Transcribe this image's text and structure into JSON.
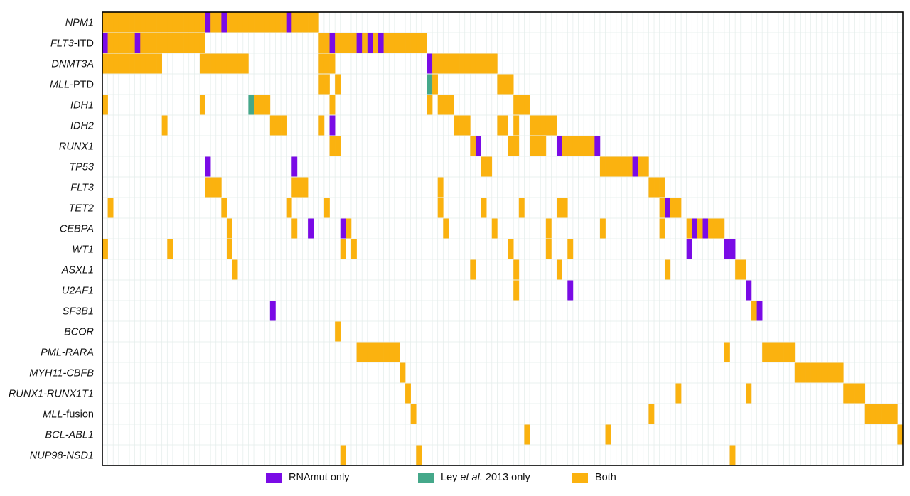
{
  "chart_data": {
    "type": "heatmap",
    "description_free": true,
    "rows": [
      {
        "label": [
          {
            "t": "NPM1",
            "i": true
          }
        ]
      },
      {
        "label": [
          {
            "t": "FLT3",
            "i": true
          },
          {
            "t": "-ITD",
            "i": false
          }
        ]
      },
      {
        "label": [
          {
            "t": "DNMT3A",
            "i": true
          }
        ]
      },
      {
        "label": [
          {
            "t": "MLL",
            "i": true
          },
          {
            "t": "-PTD",
            "i": false
          }
        ]
      },
      {
        "label": [
          {
            "t": "IDH1",
            "i": true
          }
        ]
      },
      {
        "label": [
          {
            "t": "IDH2",
            "i": true
          }
        ]
      },
      {
        "label": [
          {
            "t": "RUNX1",
            "i": true
          }
        ]
      },
      {
        "label": [
          {
            "t": "TP53",
            "i": true
          }
        ]
      },
      {
        "label": [
          {
            "t": "FLT3",
            "i": true
          }
        ]
      },
      {
        "label": [
          {
            "t": "TET2",
            "i": true
          }
        ]
      },
      {
        "label": [
          {
            "t": "CEBPA",
            "i": true
          }
        ]
      },
      {
        "label": [
          {
            "t": "WT1",
            "i": true
          }
        ]
      },
      {
        "label": [
          {
            "t": "ASXL1",
            "i": true
          }
        ]
      },
      {
        "label": [
          {
            "t": "U2AF1",
            "i": true
          }
        ]
      },
      {
        "label": [
          {
            "t": "SF3B1",
            "i": true
          }
        ]
      },
      {
        "label": [
          {
            "t": "BCOR",
            "i": true
          }
        ]
      },
      {
        "label": [
          {
            "t": "PML-RARA",
            "i": true
          }
        ]
      },
      {
        "label": [
          {
            "t": "MYH11-CBFB",
            "i": true
          }
        ]
      },
      {
        "label": [
          {
            "t": "RUNX1-RUNX1T1",
            "i": true
          }
        ]
      },
      {
        "label": [
          {
            "t": "MLL",
            "i": true
          },
          {
            "t": "-fusion",
            "i": false
          }
        ]
      },
      {
        "label": [
          {
            "t": "BCL-ABL1",
            "i": true
          }
        ]
      },
      {
        "label": [
          {
            "t": "NUP98-NSD1",
            "i": true
          }
        ]
      }
    ],
    "n_samples": 148,
    "categories": [
      {
        "code": "R",
        "name": "RNAmut only",
        "color": "#7a0be6"
      },
      {
        "code": "L",
        "name": "Ley et al. 2013 only",
        "color": "#45a88a"
      },
      {
        "code": "B",
        "name": "Both",
        "color": "#fbb20f"
      }
    ],
    "segments": [
      [
        [
          0,
          19,
          "B"
        ],
        [
          19,
          1,
          "R"
        ],
        [
          20,
          2,
          "B"
        ],
        [
          22,
          1,
          "R"
        ],
        [
          23,
          11,
          "B"
        ],
        [
          34,
          1,
          "R"
        ],
        [
          35,
          5,
          "B"
        ]
      ],
      [
        [
          0,
          1,
          "R"
        ],
        [
          1,
          5,
          "B"
        ],
        [
          6,
          1,
          "R"
        ],
        [
          7,
          12,
          "B"
        ],
        [
          40,
          2,
          "B"
        ],
        [
          42,
          1,
          "R"
        ],
        [
          43,
          4,
          "B"
        ],
        [
          47,
          1,
          "R"
        ],
        [
          48,
          1,
          "B"
        ],
        [
          49,
          1,
          "R"
        ],
        [
          50,
          1,
          "B"
        ],
        [
          51,
          1,
          "R"
        ],
        [
          52,
          8,
          "B"
        ]
      ],
      [
        [
          0,
          11,
          "B"
        ],
        [
          18,
          9,
          "B"
        ],
        [
          40,
          3,
          "B"
        ],
        [
          60,
          1,
          "R"
        ],
        [
          61,
          12,
          "B"
        ]
      ],
      [
        [
          40,
          2,
          "B"
        ],
        [
          43,
          1,
          "B"
        ],
        [
          60,
          1,
          "L"
        ],
        [
          61,
          1,
          "B"
        ],
        [
          73,
          3,
          "B"
        ]
      ],
      [
        [
          0,
          1,
          "B"
        ],
        [
          18,
          1,
          "B"
        ],
        [
          27,
          1,
          "L"
        ],
        [
          28,
          3,
          "B"
        ],
        [
          42,
          1,
          "B"
        ],
        [
          60,
          1,
          "B"
        ],
        [
          62,
          3,
          "B"
        ],
        [
          76,
          3,
          "B"
        ]
      ],
      [
        [
          11,
          1,
          "B"
        ],
        [
          31,
          3,
          "B"
        ],
        [
          40,
          1,
          "B"
        ],
        [
          42,
          1,
          "R"
        ],
        [
          65,
          3,
          "B"
        ],
        [
          73,
          2,
          "B"
        ],
        [
          76,
          1,
          "B"
        ],
        [
          79,
          5,
          "B"
        ]
      ],
      [
        [
          42,
          2,
          "B"
        ],
        [
          68,
          1,
          "B"
        ],
        [
          69,
          1,
          "R"
        ],
        [
          75,
          2,
          "B"
        ],
        [
          79,
          3,
          "B"
        ],
        [
          84,
          1,
          "R"
        ],
        [
          85,
          6,
          "B"
        ],
        [
          91,
          1,
          "R"
        ]
      ],
      [
        [
          19,
          1,
          "R"
        ],
        [
          35,
          1,
          "R"
        ],
        [
          70,
          2,
          "B"
        ],
        [
          92,
          6,
          "B"
        ],
        [
          98,
          1,
          "R"
        ],
        [
          99,
          2,
          "B"
        ]
      ],
      [
        [
          19,
          3,
          "B"
        ],
        [
          35,
          3,
          "B"
        ],
        [
          62,
          1,
          "B"
        ],
        [
          101,
          3,
          "B"
        ]
      ],
      [
        [
          1,
          1,
          "B"
        ],
        [
          22,
          1,
          "B"
        ],
        [
          34,
          1,
          "B"
        ],
        [
          41,
          1,
          "B"
        ],
        [
          62,
          1,
          "B"
        ],
        [
          70,
          1,
          "B"
        ],
        [
          77,
          1,
          "B"
        ],
        [
          84,
          2,
          "B"
        ],
        [
          103,
          1,
          "B"
        ],
        [
          104,
          1,
          "R"
        ],
        [
          105,
          2,
          "B"
        ]
      ],
      [
        [
          23,
          1,
          "B"
        ],
        [
          35,
          1,
          "B"
        ],
        [
          38,
          1,
          "R"
        ],
        [
          44,
          1,
          "R"
        ],
        [
          45,
          1,
          "B"
        ],
        [
          63,
          1,
          "B"
        ],
        [
          72,
          1,
          "B"
        ],
        [
          82,
          1,
          "B"
        ],
        [
          92,
          1,
          "B"
        ],
        [
          103,
          1,
          "B"
        ],
        [
          108,
          1,
          "B"
        ],
        [
          109,
          1,
          "R"
        ],
        [
          110,
          1,
          "B"
        ],
        [
          111,
          1,
          "R"
        ],
        [
          112,
          3,
          "B"
        ]
      ],
      [
        [
          0,
          1,
          "B"
        ],
        [
          12,
          1,
          "B"
        ],
        [
          23,
          1,
          "B"
        ],
        [
          44,
          1,
          "B"
        ],
        [
          46,
          1,
          "B"
        ],
        [
          75,
          1,
          "B"
        ],
        [
          82,
          1,
          "B"
        ],
        [
          86,
          1,
          "B"
        ],
        [
          108,
          1,
          "R"
        ],
        [
          115,
          2,
          "R"
        ]
      ],
      [
        [
          24,
          1,
          "B"
        ],
        [
          68,
          1,
          "B"
        ],
        [
          76,
          1,
          "B"
        ],
        [
          84,
          1,
          "B"
        ],
        [
          104,
          1,
          "B"
        ],
        [
          117,
          2,
          "B"
        ]
      ],
      [
        [
          76,
          1,
          "B"
        ],
        [
          86,
          1,
          "R"
        ],
        [
          119,
          1,
          "R"
        ]
      ],
      [
        [
          31,
          1,
          "R"
        ],
        [
          120,
          1,
          "B"
        ],
        [
          121,
          1,
          "R"
        ]
      ],
      [
        [
          43,
          1,
          "B"
        ]
      ],
      [
        [
          47,
          8,
          "B"
        ],
        [
          115,
          1,
          "B"
        ],
        [
          122,
          6,
          "B"
        ]
      ],
      [
        [
          55,
          1,
          "B"
        ],
        [
          128,
          9,
          "B"
        ]
      ],
      [
        [
          56,
          1,
          "B"
        ],
        [
          106,
          1,
          "B"
        ],
        [
          119,
          1,
          "B"
        ],
        [
          137,
          4,
          "B"
        ]
      ],
      [
        [
          57,
          1,
          "B"
        ],
        [
          101,
          1,
          "B"
        ],
        [
          141,
          6,
          "B"
        ]
      ],
      [
        [
          78,
          1,
          "B"
        ],
        [
          93,
          1,
          "B"
        ],
        [
          147,
          1,
          "B"
        ]
      ],
      [
        [
          44,
          1,
          "B"
        ],
        [
          58,
          1,
          "B"
        ],
        [
          116,
          1,
          "B"
        ]
      ]
    ]
  },
  "legend": {
    "items": [
      {
        "parts": [
          {
            "t": "RNAmut only",
            "i": false
          }
        ],
        "color": "#7a0be6"
      },
      {
        "parts": [
          {
            "t": "Ley ",
            "i": false
          },
          {
            "t": "et al.",
            "i": true
          },
          {
            "t": " 2013 only",
            "i": false
          }
        ],
        "color": "#45a88a"
      },
      {
        "parts": [
          {
            "t": "Both",
            "i": false
          }
        ],
        "color": "#fbb20f"
      }
    ]
  }
}
